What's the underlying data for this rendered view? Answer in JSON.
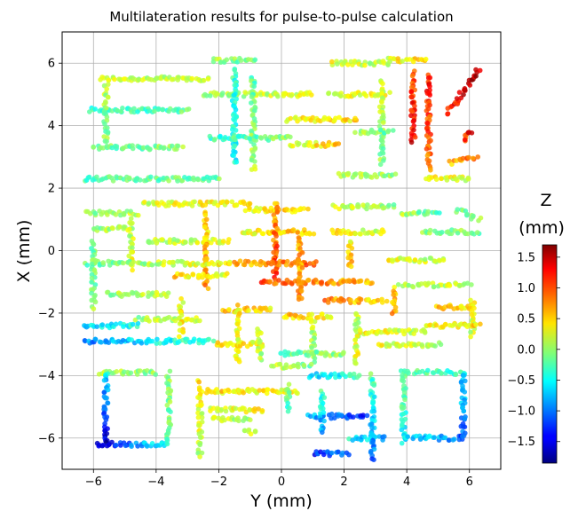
{
  "chart_data": {
    "type": "scatter",
    "title": "Multilateration results for pulse-to-pulse calculation",
    "xlabel": "Y (mm)",
    "ylabel": "X (mm)",
    "xlim": [
      -7,
      7
    ],
    "ylim": [
      -7,
      7
    ],
    "xticks": [
      -6,
      -4,
      -2,
      0,
      2,
      4,
      6
    ],
    "yticks": [
      -6,
      -4,
      -2,
      0,
      2,
      4,
      6
    ],
    "xtick_labels": [
      "−6",
      "−4",
      "−2",
      "0",
      "2",
      "4",
      "6"
    ],
    "ytick_labels": [
      "−6",
      "−4",
      "−2",
      "0",
      "2",
      "4",
      "6"
    ],
    "grid": true,
    "colorbar": {
      "title_line1": "Z",
      "title_line2": "(mm)",
      "colormap": "jet",
      "range": [
        -1.85,
        1.7
      ],
      "ticks": [
        1.5,
        1.0,
        0.5,
        0.0,
        -0.5,
        -1.0,
        -1.5
      ],
      "tick_labels": [
        "1.5",
        "1.0",
        "0.5",
        "0.0",
        "−0.5",
        "−1.0",
        "−1.5"
      ]
    },
    "segments": [
      {
        "x0": -5.8,
        "x1": -2.3,
        "y0": 5.5,
        "y1": 5.5,
        "z0": 0.2,
        "z1": 0.1
      },
      {
        "x0": -6.1,
        "x1": -3.0,
        "y0": 4.5,
        "y1": 4.5,
        "z0": -0.4,
        "z1": -0.2
      },
      {
        "x0": -5.6,
        "x1": -5.6,
        "y0": 5.3,
        "y1": 3.5,
        "z0": 0.1,
        "z1": -0.1
      },
      {
        "x0": -6.0,
        "x1": -3.2,
        "y0": 3.3,
        "y1": 3.3,
        "z0": -0.2,
        "z1": 0.0
      },
      {
        "x0": -6.3,
        "x1": -2.0,
        "y0": 2.3,
        "y1": 2.3,
        "z0": -0.3,
        "z1": -0.1
      },
      {
        "x0": -2.2,
        "x1": -0.8,
        "y0": 6.1,
        "y1": 6.1,
        "z0": 0.1,
        "z1": -0.2
      },
      {
        "x0": -2.5,
        "x1": 1.0,
        "y0": 5.0,
        "y1": 5.0,
        "z0": 0.0,
        "z1": 0.3
      },
      {
        "x0": -1.5,
        "x1": -1.5,
        "y0": 5.8,
        "y1": 2.8,
        "z0": -0.3,
        "z1": -0.5
      },
      {
        "x0": -0.9,
        "x1": -0.9,
        "y0": 5.6,
        "y1": 2.6,
        "z0": -0.2,
        "z1": 0.1
      },
      {
        "x0": -2.3,
        "x1": 0.3,
        "y0": 3.6,
        "y1": 3.6,
        "z0": -0.4,
        "z1": 0.0
      },
      {
        "x0": 0.2,
        "x1": 2.4,
        "y0": 4.2,
        "y1": 4.2,
        "z0": 0.3,
        "z1": 0.5
      },
      {
        "x0": 0.3,
        "x1": 1.8,
        "y0": 3.4,
        "y1": 3.4,
        "z0": 0.2,
        "z1": 0.6
      },
      {
        "x0": 1.6,
        "x1": 3.4,
        "y0": 6.0,
        "y1": 6.0,
        "z0": 0.3,
        "z1": 0.1
      },
      {
        "x0": 1.5,
        "x1": 3.4,
        "y0": 5.0,
        "y1": 5.0,
        "z0": 0.2,
        "z1": 0.4
      },
      {
        "x0": 3.2,
        "x1": 3.2,
        "y0": 5.4,
        "y1": 2.8,
        "z0": 0.2,
        "z1": -0.1
      },
      {
        "x0": 3.4,
        "x1": 4.6,
        "y0": 6.1,
        "y1": 6.1,
        "z0": 0.3,
        "z1": 0.5
      },
      {
        "x0": 4.2,
        "x1": 4.2,
        "y0": 5.7,
        "y1": 3.5,
        "z0": 1.0,
        "z1": 1.3
      },
      {
        "x0": 4.7,
        "x1": 4.7,
        "y0": 5.6,
        "y1": 2.6,
        "z0": 1.2,
        "z1": 0.8
      },
      {
        "x0": 5.3,
        "x1": 6.3,
        "y0": 4.4,
        "y1": 5.8,
        "z0": 1.2,
        "z1": 1.5
      },
      {
        "x0": 5.8,
        "x1": 6.1,
        "y0": 3.5,
        "y1": 3.8,
        "z0": 1.0,
        "z1": 1.3
      },
      {
        "x0": 5.4,
        "x1": 6.2,
        "y0": 2.8,
        "y1": 3.0,
        "z0": 0.6,
        "z1": 0.9
      },
      {
        "x0": 2.4,
        "x1": 3.5,
        "y0": 3.8,
        "y1": 3.8,
        "z0": 0.1,
        "z1": -0.3
      },
      {
        "x0": 1.8,
        "x1": 3.6,
        "y0": 2.4,
        "y1": 2.4,
        "z0": 0.2,
        "z1": 0.0
      },
      {
        "x0": 4.6,
        "x1": 6.0,
        "y0": 2.3,
        "y1": 2.3,
        "z0": 0.4,
        "z1": 0.2
      },
      {
        "x0": -4.4,
        "x1": -1.0,
        "y0": 1.5,
        "y1": 1.5,
        "z0": 0.2,
        "z1": 0.5
      },
      {
        "x0": -6.2,
        "x1": -4.6,
        "y0": 1.2,
        "y1": 1.2,
        "z0": -0.1,
        "z1": 0.2
      },
      {
        "x0": -6.0,
        "x1": -4.9,
        "y0": 0.7,
        "y1": 0.7,
        "z0": 0.0,
        "z1": 0.1
      },
      {
        "x0": -4.8,
        "x1": -4.8,
        "y0": 1.0,
        "y1": -0.6,
        "z0": 0.1,
        "z1": 0.3
      },
      {
        "x0": -4.3,
        "x1": -1.7,
        "y0": 0.3,
        "y1": 0.3,
        "z0": 0.1,
        "z1": 0.3
      },
      {
        "x0": -2.4,
        "x1": -2.4,
        "y0": 1.2,
        "y1": -1.2,
        "z0": 0.4,
        "z1": 0.8
      },
      {
        "x0": -1.1,
        "x1": 0.8,
        "y0": 1.3,
        "y1": 1.3,
        "z0": 0.3,
        "z1": 0.5
      },
      {
        "x0": -1.3,
        "x1": 1.0,
        "y0": 0.6,
        "y1": 0.6,
        "z0": 0.3,
        "z1": 0.6
      },
      {
        "x0": -0.2,
        "x1": -0.2,
        "y0": 1.5,
        "y1": -0.8,
        "z0": 0.7,
        "z1": 1.1
      },
      {
        "x0": 1.7,
        "x1": 3.6,
        "y0": 1.4,
        "y1": 1.4,
        "z0": 0.2,
        "z1": 0.0
      },
      {
        "x0": 1.6,
        "x1": 3.3,
        "y0": 0.6,
        "y1": 0.6,
        "z0": 0.4,
        "z1": 0.2
      },
      {
        "x0": 3.8,
        "x1": 5.0,
        "y0": 1.2,
        "y1": 1.2,
        "z0": 0.1,
        "z1": -0.2
      },
      {
        "x0": 4.5,
        "x1": 6.3,
        "y0": 0.6,
        "y1": 0.6,
        "z0": 0.0,
        "z1": -0.1
      },
      {
        "x0": 5.6,
        "x1": 6.3,
        "y0": 1.3,
        "y1": 1.0,
        "z0": -0.2,
        "z1": 0.0
      },
      {
        "x0": -6.2,
        "x1": -1.7,
        "y0": -0.4,
        "y1": -0.4,
        "z0": -0.2,
        "z1": 0.4
      },
      {
        "x0": -6.0,
        "x1": -6.0,
        "y0": 0.3,
        "y1": -1.8,
        "z0": -0.2,
        "z1": 0.0
      },
      {
        "x0": -5.6,
        "x1": -3.6,
        "y0": -1.4,
        "y1": -1.4,
        "z0": 0.0,
        "z1": 0.2
      },
      {
        "x0": -3.4,
        "x1": -1.7,
        "y0": -0.8,
        "y1": -0.8,
        "z0": 0.5,
        "z1": 0.3
      },
      {
        "x0": -1.6,
        "x1": 1.1,
        "y0": -0.4,
        "y1": -0.4,
        "z0": 0.6,
        "z1": 0.9
      },
      {
        "x0": -0.7,
        "x1": 2.9,
        "y0": -1.0,
        "y1": -1.0,
        "z0": 1.0,
        "z1": 0.6
      },
      {
        "x0": 0.6,
        "x1": 0.6,
        "y0": 0.5,
        "y1": -1.6,
        "z0": 0.6,
        "z1": 0.8
      },
      {
        "x0": 1.4,
        "x1": 3.3,
        "y0": -1.6,
        "y1": -1.6,
        "z0": 0.8,
        "z1": 0.4
      },
      {
        "x0": 2.2,
        "x1": 2.2,
        "y0": 0.3,
        "y1": -0.5,
        "z0": 0.4,
        "z1": 0.6
      },
      {
        "x0": 3.4,
        "x1": 5.2,
        "y0": -0.3,
        "y1": -0.3,
        "z0": 0.3,
        "z1": 0.1
      },
      {
        "x0": 3.8,
        "x1": 6.0,
        "y0": -1.1,
        "y1": -1.1,
        "z0": 0.1,
        "z1": 0.2
      },
      {
        "x0": 5.0,
        "x1": 6.1,
        "y0": -1.8,
        "y1": -1.8,
        "z0": 0.6,
        "z1": 0.4
      },
      {
        "x0": 6.1,
        "x1": 6.1,
        "y0": -1.6,
        "y1": -2.7,
        "z0": 0.4,
        "z1": 0.2
      },
      {
        "x0": -6.3,
        "x1": -4.6,
        "y0": -2.4,
        "y1": -2.4,
        "z0": -0.7,
        "z1": -0.4
      },
      {
        "x0": -6.3,
        "x1": -2.2,
        "y0": -2.9,
        "y1": -2.9,
        "z0": -1.0,
        "z1": -0.2
      },
      {
        "x0": -4.6,
        "x1": -2.6,
        "y0": -2.2,
        "y1": -2.2,
        "z0": 0.0,
        "z1": 0.3
      },
      {
        "x0": -1.8,
        "x1": -0.3,
        "y0": -1.9,
        "y1": -1.9,
        "z0": 0.6,
        "z1": 0.4
      },
      {
        "x0": -1.4,
        "x1": -1.4,
        "y0": -1.8,
        "y1": -3.6,
        "z0": 0.4,
        "z1": 0.2
      },
      {
        "x0": -2.1,
        "x1": -0.6,
        "y0": -3.0,
        "y1": -3.0,
        "z0": 0.5,
        "z1": 0.3
      },
      {
        "x0": -0.7,
        "x1": -0.7,
        "y0": -2.5,
        "y1": -3.5,
        "z0": 0.3,
        "z1": 0.1
      },
      {
        "x0": 0.1,
        "x1": 1.6,
        "y0": -2.1,
        "y1": -2.1,
        "z0": 0.6,
        "z1": 0.3
      },
      {
        "x0": 1.0,
        "x1": 1.0,
        "y0": -2.2,
        "y1": -3.5,
        "z0": 0.2,
        "z1": 0.0
      },
      {
        "x0": 0.0,
        "x1": 2.0,
        "y0": -3.3,
        "y1": -3.3,
        "z0": -0.2,
        "z1": 0.0
      },
      {
        "x0": 2.4,
        "x1": 2.4,
        "y0": -2.0,
        "y1": -3.6,
        "z0": 0.1,
        "z1": 0.3
      },
      {
        "x0": 2.5,
        "x1": 4.6,
        "y0": -2.6,
        "y1": -2.6,
        "z0": 0.4,
        "z1": 0.1
      },
      {
        "x0": 4.6,
        "x1": 6.3,
        "y0": -2.4,
        "y1": -2.4,
        "z0": 0.3,
        "z1": 0.5
      },
      {
        "x0": 3.1,
        "x1": 5.1,
        "y0": -3.0,
        "y1": -3.0,
        "z0": 0.3,
        "z1": 0.1
      },
      {
        "x0": -5.8,
        "x1": -4.0,
        "y0": -3.9,
        "y1": -3.9,
        "z0": 0.1,
        "z1": 0.0
      },
      {
        "x0": -5.6,
        "x1": -5.6,
        "y0": -3.9,
        "y1": -6.2,
        "z0": -0.6,
        "z1": -1.6
      },
      {
        "x0": -5.9,
        "x1": -3.6,
        "y0": -6.2,
        "y1": -6.2,
        "z0": -1.6,
        "z1": -0.4
      },
      {
        "x0": -3.6,
        "x1": -3.6,
        "y0": -3.9,
        "y1": -6.1,
        "z0": 0.0,
        "z1": -0.2
      },
      {
        "x0": -2.6,
        "x1": -2.6,
        "y0": -4.2,
        "y1": -6.6,
        "z0": 0.4,
        "z1": 0.1
      },
      {
        "x0": -2.4,
        "x1": 0.5,
        "y0": -4.5,
        "y1": -4.5,
        "z0": 0.5,
        "z1": 0.3
      },
      {
        "x0": -2.3,
        "x1": -0.6,
        "y0": -5.1,
        "y1": -5.1,
        "z0": 0.2,
        "z1": 0.4
      },
      {
        "x0": -2.2,
        "x1": -1.0,
        "y0": -5.4,
        "y1": -5.4,
        "z0": 0.3,
        "z1": 0.0
      },
      {
        "x0": -1.2,
        "x1": -0.8,
        "y0": -5.8,
        "y1": -5.8,
        "z0": 0.0,
        "z1": 0.2
      },
      {
        "x0": -0.3,
        "x1": 0.9,
        "y0": -3.7,
        "y1": -3.7,
        "z0": 0.1,
        "z1": -0.1
      },
      {
        "x0": 0.9,
        "x1": 2.5,
        "y0": -4.0,
        "y1": -4.0,
        "z0": -0.7,
        "z1": -0.3
      },
      {
        "x0": 0.2,
        "x1": 0.2,
        "y0": -4.3,
        "y1": -5.1,
        "z0": 0.0,
        "z1": -0.4
      },
      {
        "x0": 0.9,
        "x1": 2.7,
        "y0": -5.3,
        "y1": -5.3,
        "z0": -0.8,
        "z1": -1.3
      },
      {
        "x0": 1.0,
        "x1": 2.1,
        "y0": -6.5,
        "y1": -6.5,
        "z0": -1.3,
        "z1": -1.0
      },
      {
        "x0": 1.3,
        "x1": 1.3,
        "y0": -4.5,
        "y1": -5.8,
        "z0": -0.3,
        "z1": -0.9
      },
      {
        "x0": 2.2,
        "x1": 3.3,
        "y0": -6.0,
        "y1": -6.0,
        "z0": -0.5,
        "z1": -0.8
      },
      {
        "x0": 2.9,
        "x1": 2.9,
        "y0": -4.0,
        "y1": -6.7,
        "z0": -0.2,
        "z1": -1.1
      },
      {
        "x0": 3.8,
        "x1": 5.8,
        "y0": -3.9,
        "y1": -3.9,
        "z0": -0.2,
        "z1": -0.4
      },
      {
        "x0": 3.9,
        "x1": 3.9,
        "y0": -4.0,
        "y1": -6.1,
        "z0": 0.0,
        "z1": -0.6
      },
      {
        "x0": 3.9,
        "x1": 5.8,
        "y0": -6.0,
        "y1": -6.0,
        "z0": -0.6,
        "z1": -1.0
      },
      {
        "x0": 5.8,
        "x1": 5.8,
        "y0": -3.9,
        "y1": -6.0,
        "z0": -0.6,
        "z1": -1.1
      },
      {
        "x0": -3.2,
        "x1": -3.2,
        "y0": -1.6,
        "y1": -2.7,
        "z0": 0.3,
        "z1": 0.5
      },
      {
        "x0": 3.6,
        "x1": 3.6,
        "y0": -1.2,
        "y1": -2.0,
        "z0": 0.5,
        "z1": 0.8
      }
    ]
  }
}
